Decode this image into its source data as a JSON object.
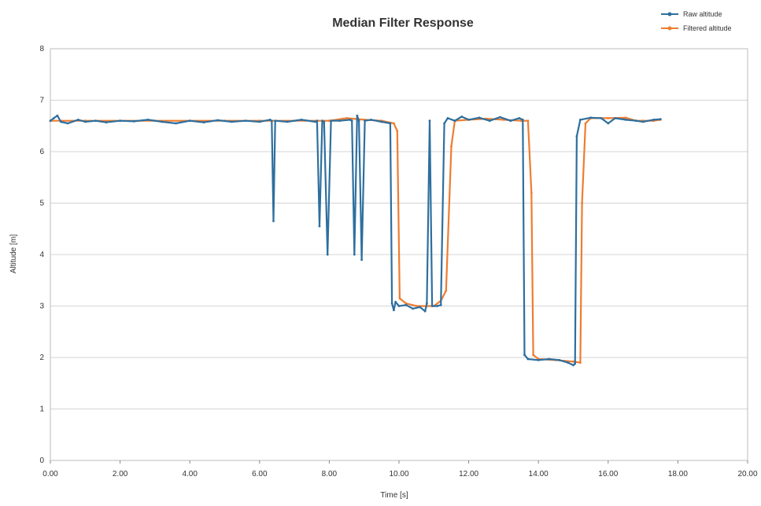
{
  "chart_data": {
    "type": "line",
    "title": "Median Filter Response",
    "xlabel": "Time [s]",
    "ylabel": "Altitude [m]",
    "xlim": [
      0,
      20
    ],
    "ylim": [
      0,
      8
    ],
    "x_ticks": [
      0,
      2,
      4,
      6,
      8,
      10,
      12,
      14,
      16,
      18,
      20
    ],
    "x_tick_labels": [
      "0.00",
      "2.00",
      "4.00",
      "6.00",
      "8.00",
      "10.00",
      "12.00",
      "14.00",
      "16.00",
      "18.00",
      "20.00"
    ],
    "y_ticks": [
      0,
      1,
      2,
      3,
      4,
      5,
      6,
      7,
      8
    ],
    "y_tick_labels": [
      "0",
      "1",
      "2",
      "3",
      "4",
      "5",
      "6",
      "7",
      "8"
    ],
    "grid": "horizontal",
    "legend_position": "top-right",
    "series": [
      {
        "name": "Raw altitude",
        "color": "#2e6f9e",
        "points": [
          [
            0.0,
            6.6
          ],
          [
            0.1,
            6.65
          ],
          [
            0.2,
            6.7
          ],
          [
            0.3,
            6.58
          ],
          [
            0.5,
            6.55
          ],
          [
            0.8,
            6.62
          ],
          [
            1.0,
            6.58
          ],
          [
            1.3,
            6.6
          ],
          [
            1.6,
            6.57
          ],
          [
            2.0,
            6.6
          ],
          [
            2.4,
            6.59
          ],
          [
            2.8,
            6.62
          ],
          [
            3.2,
            6.58
          ],
          [
            3.6,
            6.55
          ],
          [
            4.0,
            6.6
          ],
          [
            4.4,
            6.57
          ],
          [
            4.8,
            6.61
          ],
          [
            5.2,
            6.58
          ],
          [
            5.6,
            6.6
          ],
          [
            6.0,
            6.58
          ],
          [
            6.3,
            6.62
          ],
          [
            6.35,
            6.6
          ],
          [
            6.4,
            4.65
          ],
          [
            6.45,
            6.6
          ],
          [
            6.8,
            6.58
          ],
          [
            7.2,
            6.62
          ],
          [
            7.6,
            6.58
          ],
          [
            7.65,
            6.6
          ],
          [
            7.72,
            4.55
          ],
          [
            7.8,
            6.6
          ],
          [
            7.85,
            6.58
          ],
          [
            7.95,
            4.0
          ],
          [
            8.05,
            6.6
          ],
          [
            8.3,
            6.6
          ],
          [
            8.6,
            6.62
          ],
          [
            8.65,
            6.6
          ],
          [
            8.72,
            4.0
          ],
          [
            8.8,
            6.7
          ],
          [
            8.85,
            6.6
          ],
          [
            8.93,
            3.9
          ],
          [
            9.02,
            6.6
          ],
          [
            9.2,
            6.62
          ],
          [
            9.5,
            6.58
          ],
          [
            9.75,
            6.55
          ],
          [
            9.8,
            3.05
          ],
          [
            9.85,
            2.92
          ],
          [
            9.9,
            3.08
          ],
          [
            10.0,
            3.0
          ],
          [
            10.2,
            3.02
          ],
          [
            10.4,
            2.95
          ],
          [
            10.6,
            2.98
          ],
          [
            10.75,
            2.9
          ],
          [
            10.8,
            3.05
          ],
          [
            10.88,
            6.6
          ],
          [
            10.95,
            3.0
          ],
          [
            11.1,
            3.0
          ],
          [
            11.2,
            3.02
          ],
          [
            11.3,
            6.55
          ],
          [
            11.4,
            6.65
          ],
          [
            11.6,
            6.6
          ],
          [
            11.8,
            6.68
          ],
          [
            12.0,
            6.62
          ],
          [
            12.3,
            6.66
          ],
          [
            12.6,
            6.6
          ],
          [
            12.9,
            6.67
          ],
          [
            13.2,
            6.6
          ],
          [
            13.45,
            6.65
          ],
          [
            13.55,
            6.62
          ],
          [
            13.6,
            2.05
          ],
          [
            13.7,
            1.97
          ],
          [
            14.0,
            1.95
          ],
          [
            14.3,
            1.97
          ],
          [
            14.6,
            1.95
          ],
          [
            14.85,
            1.9
          ],
          [
            15.0,
            1.85
          ],
          [
            15.05,
            1.88
          ],
          [
            15.1,
            6.3
          ],
          [
            15.2,
            6.62
          ],
          [
            15.5,
            6.66
          ],
          [
            15.8,
            6.65
          ],
          [
            16.0,
            6.55
          ],
          [
            16.2,
            6.65
          ],
          [
            16.5,
            6.62
          ],
          [
            16.8,
            6.6
          ],
          [
            17.0,
            6.58
          ],
          [
            17.3,
            6.62
          ],
          [
            17.5,
            6.63
          ]
        ]
      },
      {
        "name": "Filtered altitude",
        "color": "#ed7d31",
        "points": [
          [
            0.0,
            6.6
          ],
          [
            0.3,
            6.6
          ],
          [
            1.0,
            6.6
          ],
          [
            2.0,
            6.6
          ],
          [
            3.0,
            6.6
          ],
          [
            4.0,
            6.6
          ],
          [
            5.0,
            6.6
          ],
          [
            6.0,
            6.6
          ],
          [
            7.0,
            6.6
          ],
          [
            8.0,
            6.6
          ],
          [
            8.5,
            6.65
          ],
          [
            9.0,
            6.62
          ],
          [
            9.5,
            6.6
          ],
          [
            9.85,
            6.55
          ],
          [
            9.95,
            6.4
          ],
          [
            10.02,
            3.15
          ],
          [
            10.2,
            3.05
          ],
          [
            10.5,
            3.0
          ],
          [
            10.8,
            3.0
          ],
          [
            11.0,
            3.0
          ],
          [
            11.2,
            3.1
          ],
          [
            11.35,
            3.3
          ],
          [
            11.5,
            6.1
          ],
          [
            11.6,
            6.6
          ],
          [
            12.0,
            6.62
          ],
          [
            12.5,
            6.64
          ],
          [
            13.0,
            6.62
          ],
          [
            13.5,
            6.6
          ],
          [
            13.7,
            6.6
          ],
          [
            13.8,
            5.2
          ],
          [
            13.85,
            2.05
          ],
          [
            14.0,
            1.97
          ],
          [
            14.5,
            1.95
          ],
          [
            15.0,
            1.92
          ],
          [
            15.2,
            1.9
          ],
          [
            15.25,
            5.0
          ],
          [
            15.35,
            6.55
          ],
          [
            15.5,
            6.65
          ],
          [
            16.0,
            6.65
          ],
          [
            16.5,
            6.66
          ],
          [
            16.8,
            6.6
          ],
          [
            17.0,
            6.6
          ],
          [
            17.3,
            6.6
          ],
          [
            17.5,
            6.62
          ]
        ]
      }
    ]
  }
}
